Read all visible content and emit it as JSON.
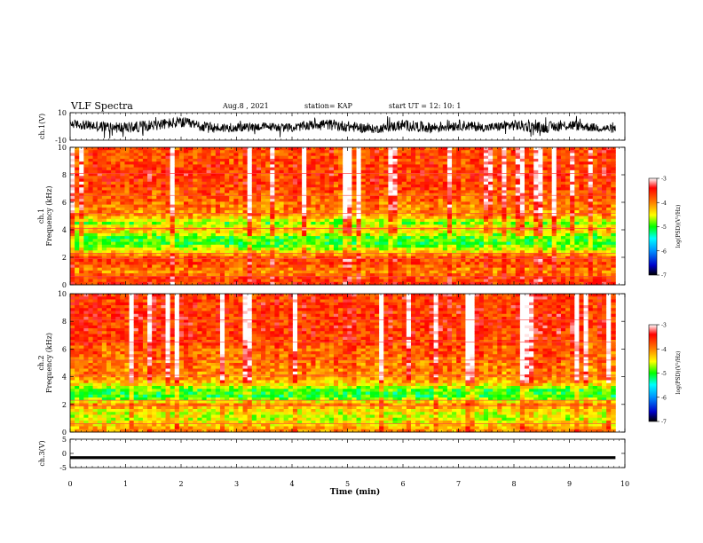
{
  "header": {
    "title": "VLF Spectra",
    "date": "Aug.8 , 2021",
    "station": "station= KAP",
    "start": "start UT = 12: 10: 1"
  },
  "chart_data": [
    {
      "type": "line",
      "panel": "ch1-waveform",
      "ylabel": "ch.1(V)",
      "ylim": [
        -10,
        10
      ],
      "y_ticks": [
        "10",
        "-10"
      ],
      "x_range_min": [
        0,
        9.83
      ],
      "envelope_samples": [
        {
          "t": 0.0,
          "mid": 2,
          "amp": 3
        },
        {
          "t": 0.5,
          "mid": 0,
          "amp": 4
        },
        {
          "t": 1.0,
          "mid": -1,
          "amp": 4
        },
        {
          "t": 1.5,
          "mid": 1,
          "amp": 4
        },
        {
          "t": 2.0,
          "mid": 3,
          "amp": 4
        },
        {
          "t": 2.5,
          "mid": -1,
          "amp": 4
        },
        {
          "t": 3.0,
          "mid": -1,
          "amp": 3
        },
        {
          "t": 3.5,
          "mid": 0,
          "amp": 3
        },
        {
          "t": 4.0,
          "mid": -1,
          "amp": 3
        },
        {
          "t": 4.5,
          "mid": 2,
          "amp": 4
        },
        {
          "t": 5.0,
          "mid": 0,
          "amp": 4
        },
        {
          "t": 5.5,
          "mid": -2,
          "amp": 3
        },
        {
          "t": 6.0,
          "mid": 1,
          "amp": 4
        },
        {
          "t": 6.5,
          "mid": -1,
          "amp": 4
        },
        {
          "t": 7.0,
          "mid": 1,
          "amp": 4
        },
        {
          "t": 7.5,
          "mid": -1,
          "amp": 3
        },
        {
          "t": 8.0,
          "mid": 1,
          "amp": 4
        },
        {
          "t": 8.5,
          "mid": -1,
          "amp": 4
        },
        {
          "t": 9.0,
          "mid": 1,
          "amp": 4
        },
        {
          "t": 9.5,
          "mid": -1,
          "amp": 3
        },
        {
          "t": 9.83,
          "mid": -2,
          "amp": 3
        }
      ]
    },
    {
      "type": "heatmap",
      "panel": "ch1-spectrogram",
      "ylabel": "ch.1\nFrequency (kHz)",
      "ylabel_lines": [
        "ch.1",
        "Frequency (kHz)"
      ],
      "ylim": [
        0,
        10
      ],
      "y_ticks": [
        "0",
        "2",
        "4",
        "6",
        "8",
        "10"
      ],
      "colorbar": {
        "min": -7,
        "max": -3,
        "ticks": [
          "-3",
          "-4",
          "-5",
          "-6",
          "-7"
        ],
        "label": "log(PSD)(V²/Hz)"
      },
      "band_profile_khz_logpsd": [
        {
          "f": 0.0,
          "v": -3.6
        },
        {
          "f": 0.5,
          "v": -3.7
        },
        {
          "f": 1.0,
          "v": -4.1
        },
        {
          "f": 1.5,
          "v": -3.7
        },
        {
          "f": 2.0,
          "v": -3.8
        },
        {
          "f": 2.5,
          "v": -4.5
        },
        {
          "f": 3.0,
          "v": -5.0
        },
        {
          "f": 3.5,
          "v": -4.9
        },
        {
          "f": 4.0,
          "v": -4.2
        },
        {
          "f": 4.5,
          "v": -4.8
        },
        {
          "f": 5.0,
          "v": -4.1
        },
        {
          "f": 5.5,
          "v": -4.0
        },
        {
          "f": 6.0,
          "v": -3.9
        },
        {
          "f": 7.0,
          "v": -3.7
        },
        {
          "f": 8.0,
          "v": -3.6
        },
        {
          "f": 9.0,
          "v": -3.7
        },
        {
          "f": 10.0,
          "v": -3.7
        }
      ]
    },
    {
      "type": "heatmap",
      "panel": "ch2-spectrogram",
      "ylabel": "ch.2\nFrequency (kHz)",
      "ylabel_lines": [
        "ch.2",
        "Frequency (kHz)"
      ],
      "ylim": [
        0,
        10
      ],
      "y_ticks": [
        "0",
        "2",
        "4",
        "6",
        "8",
        "10"
      ],
      "colorbar": {
        "min": -7,
        "max": -3,
        "ticks": [
          "-3",
          "-4",
          "-5",
          "-6",
          "-7"
        ],
        "label": "log(PSD)(V²/Hz)"
      },
      "band_profile_khz_logpsd": [
        {
          "f": 0.0,
          "v": -4.0
        },
        {
          "f": 0.5,
          "v": -4.3
        },
        {
          "f": 1.0,
          "v": -4.6
        },
        {
          "f": 1.5,
          "v": -4.5
        },
        {
          "f": 2.0,
          "v": -4.0
        },
        {
          "f": 2.5,
          "v": -5.0
        },
        {
          "f": 3.0,
          "v": -5.0
        },
        {
          "f": 3.5,
          "v": -4.3
        },
        {
          "f": 4.0,
          "v": -4.0
        },
        {
          "f": 5.0,
          "v": -3.9
        },
        {
          "f": 6.0,
          "v": -3.8
        },
        {
          "f": 7.0,
          "v": -3.6
        },
        {
          "f": 8.0,
          "v": -3.6
        },
        {
          "f": 9.0,
          "v": -3.6
        },
        {
          "f": 10.0,
          "v": -3.6
        }
      ]
    },
    {
      "type": "line",
      "panel": "ch3-waveform",
      "ylabel": "ch.3(V)",
      "ylim": [
        -5,
        5
      ],
      "y_ticks": [
        "5",
        "0",
        "-5"
      ],
      "level_band": [
        -1,
        -2
      ]
    }
  ],
  "xaxis": {
    "label": "Time (min)",
    "range": [
      0,
      10
    ],
    "ticks": [
      "0",
      "1",
      "2",
      "3",
      "4",
      "5",
      "6",
      "7",
      "8",
      "9",
      "10"
    ]
  },
  "colors": {
    "colormap": [
      "#000000",
      "#0000c8",
      "#0090ff",
      "#00ffff",
      "#00ff00",
      "#ffff00",
      "#ff8000",
      "#ff0000",
      "#ffffff"
    ],
    "trace": "#000000"
  }
}
